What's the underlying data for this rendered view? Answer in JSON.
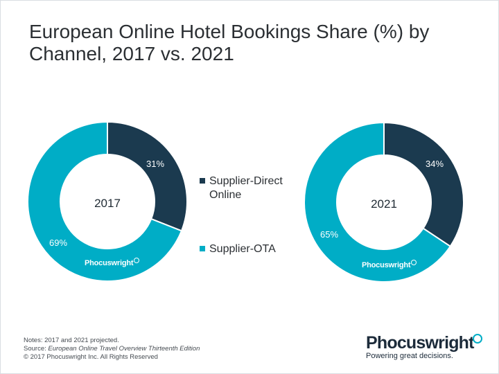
{
  "title": "European Online Hotel Bookings Share (%) by Channel, 2017 vs. 2021",
  "colors": {
    "supplier_direct": "#1b3a4f",
    "supplier_ota": "#00adc6"
  },
  "chart_data": {
    "type": "pie",
    "title": "European Online Hotel Bookings Share (%) by Channel, 2017 vs. 2021",
    "legend_position": "center",
    "series_names": [
      "Supplier-Direct Online",
      "Supplier-OTA"
    ],
    "charts": [
      {
        "label": "2017",
        "slices": [
          {
            "name": "Supplier-Direct Online",
            "value": 31,
            "label": "31%"
          },
          {
            "name": "Supplier-OTA",
            "value": 69,
            "label": "69%"
          }
        ]
      },
      {
        "label": "2021",
        "slices": [
          {
            "name": "Supplier-Direct Online",
            "value": 34,
            "label": "34%"
          },
          {
            "name": "Supplier-OTA",
            "value": 65,
            "label": "65%"
          }
        ]
      }
    ]
  },
  "legend": {
    "item1_line1": "Supplier-Direct",
    "item1_line2": "Online",
    "item2": "Supplier-OTA"
  },
  "watermark": "Phocuswright",
  "notes": {
    "line1": "Notes: 2017 and 2021 projected.",
    "source_prefix": "Source: ",
    "source_title": "European Online Travel Overview Thirteenth Edition",
    "copyright": "© 2017 Phocuswright Inc. All Rights Reserved"
  },
  "brand": {
    "name": "Phocuswright",
    "tagline": "Powering great decisions."
  }
}
